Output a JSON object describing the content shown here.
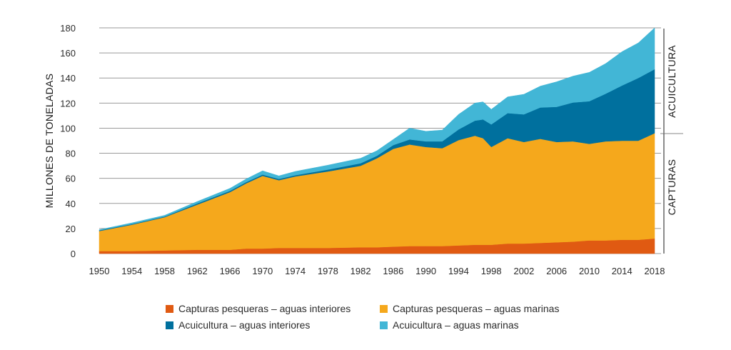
{
  "chart_data": {
    "type": "area",
    "stacked": true,
    "title": "",
    "xlabel": "",
    "ylabel": "MILLONES DE TONELADAS",
    "ylim": [
      0,
      180
    ],
    "xlim": [
      1950,
      2018
    ],
    "yticks": [
      "0",
      "20",
      "40",
      "60",
      "80",
      "100",
      "120",
      "140",
      "160",
      "180"
    ],
    "xticks": [
      "1950",
      "1954",
      "1958",
      "1962",
      "1966",
      "1970",
      "1974",
      "1978",
      "1982",
      "1986",
      "1990",
      "1994",
      "1998",
      "2002",
      "2006",
      "2010",
      "2014",
      "2018"
    ],
    "grid": "horizontal",
    "legend_position": "bottom",
    "bracket_labels": [
      "ACUICULTURA",
      "CAPTURAS"
    ],
    "x": [
      1950,
      1954,
      1958,
      1962,
      1966,
      1968,
      1970,
      1972,
      1974,
      1978,
      1982,
      1984,
      1986,
      1988,
      1990,
      1992,
      1994,
      1996,
      1997,
      1998,
      2000,
      2002,
      2004,
      2006,
      2008,
      2010,
      2012,
      2014,
      2016,
      2018
    ],
    "series": [
      {
        "name": "Capturas pesqueras – aguas interiores",
        "color": "#e05a12",
        "values": [
          2,
          2,
          2.5,
          3,
          3,
          4,
          4,
          4.5,
          4.5,
          4.5,
          5,
          5,
          5.5,
          6,
          6,
          6,
          6.5,
          7,
          7,
          7,
          8,
          8,
          8.5,
          9,
          9.5,
          10.5,
          10.5,
          11,
          11,
          12
        ]
      },
      {
        "name": "Capturas pesqueras – aguas marinas",
        "color": "#f5a81c",
        "values": [
          16,
          21,
          26.5,
          36,
          46,
          52,
          58,
          54,
          57,
          61,
          65,
          71,
          78,
          81,
          79,
          78,
          84,
          87,
          85,
          78,
          84,
          81,
          83,
          80,
          80,
          77,
          79,
          79,
          79,
          84
        ]
      },
      {
        "name": "Acuicultura – aguas interiores",
        "color": "#00709e",
        "values": [
          0.5,
          0.5,
          0.5,
          1,
          1,
          1,
          1,
          1,
          1,
          1.5,
          2,
          2,
          3,
          4,
          4.5,
          5.5,
          8.5,
          12,
          15,
          18,
          20,
          22,
          25,
          28,
          31,
          34,
          38,
          44,
          50,
          51
        ]
      },
      {
        "name": "Acuicultura – aguas marinas",
        "color": "#42b6d6",
        "values": [
          0.5,
          1,
          1,
          1.5,
          2,
          2.5,
          3,
          2.5,
          3,
          3.5,
          4,
          4,
          4.5,
          9,
          8,
          9,
          12,
          14,
          14,
          12,
          13,
          16,
          17,
          20,
          21,
          23,
          24,
          27,
          28,
          33
        ]
      }
    ]
  }
}
